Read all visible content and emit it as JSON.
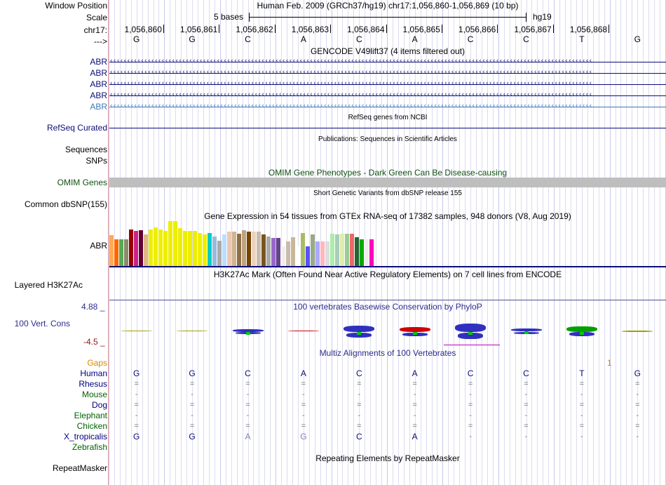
{
  "header": {
    "window_position_label": "Window Position",
    "scale_label": "Scale",
    "chrom_label": "chr17:",
    "arrow_label": "--->",
    "assembly_title": "Human Feb. 2009 (GRCh37/hg19)   chr17:1,056,860-1,056,869 (10 bp)",
    "scale_bases": "5 bases",
    "scale_db": "hg19",
    "positions": [
      "1,056,860",
      "1,056,861",
      "1,056,862",
      "1,056,863",
      "1,056,864",
      "1,056,865",
      "1,056,866",
      "1,056,867",
      "1,056,868"
    ],
    "sequence": [
      "G",
      "G",
      "C",
      "A",
      "C",
      "A",
      "C",
      "C",
      "T",
      "G"
    ]
  },
  "gencode": {
    "title": "GENCODE V49lift37 (4 items filtered out)",
    "items": [
      "ABR",
      "ABR",
      "ABR",
      "ABR",
      "ABR"
    ]
  },
  "refseq": {
    "title": "RefSeq genes from NCBI",
    "label": "RefSeq Curated"
  },
  "publications": {
    "title": "Publications: Sequences in Scientific Articles",
    "label1": "Sequences",
    "label2": "SNPs"
  },
  "omim": {
    "title": "OMIM Gene Phenotypes - Dark Green Can Be Disease-causing",
    "label": "OMIM Genes"
  },
  "dbsnp": {
    "title": "Short Genetic Variants from dbSNP release 155",
    "label": "Common dbSNP(155)"
  },
  "gtex": {
    "title": "Gene Expression in 54 tissues from GTEx RNA-seq of 17382 samples, 948 donors (V8, Aug 2019)",
    "label": "ABR",
    "tissues": [
      {
        "value": 0.68,
        "color": "#FFAA55"
      },
      {
        "value": 0.6,
        "color": "#FF6600"
      },
      {
        "value": 0.6,
        "color": "#55AA55"
      },
      {
        "value": 0.6,
        "color": "#8B8B6B"
      },
      {
        "value": 0.82,
        "color": "#990000"
      },
      {
        "value": 0.78,
        "color": "#CC2288"
      },
      {
        "value": 0.8,
        "color": "#660033"
      },
      {
        "value": 0.7,
        "color": "#DEB887"
      },
      {
        "value": 0.82,
        "color": "#EEEE00"
      },
      {
        "value": 0.86,
        "color": "#EEEE00"
      },
      {
        "value": 0.82,
        "color": "#EEEE00"
      },
      {
        "value": 0.78,
        "color": "#EEEE00"
      },
      {
        "value": 1.0,
        "color": "#EEEE00"
      },
      {
        "value": 1.0,
        "color": "#EEEE00"
      },
      {
        "value": 0.84,
        "color": "#EEEE00"
      },
      {
        "value": 0.78,
        "color": "#EEEE00"
      },
      {
        "value": 0.78,
        "color": "#EEEE00"
      },
      {
        "value": 0.78,
        "color": "#EEEE00"
      },
      {
        "value": 0.74,
        "color": "#EEEE00"
      },
      {
        "value": 0.7,
        "color": "#EEEE00"
      },
      {
        "value": 0.74,
        "color": "#00CCCC"
      },
      {
        "value": 0.66,
        "color": "#99BBDD"
      },
      {
        "value": 0.56,
        "color": "#AAAAAA"
      },
      {
        "value": 0.7,
        "color": "#BBDDFF"
      },
      {
        "value": 0.76,
        "color": "#E9C8B3"
      },
      {
        "value": 0.76,
        "color": "#D2B48C"
      },
      {
        "value": 0.72,
        "color": "#8B6F47"
      },
      {
        "value": 0.8,
        "color": "#BFA37F"
      },
      {
        "value": 0.76,
        "color": "#774400"
      },
      {
        "value": 0.76,
        "color": "#E9D3C0"
      },
      {
        "value": 0.76,
        "color": "#CCBBAA"
      },
      {
        "value": 0.7,
        "color": "#775522"
      },
      {
        "value": 0.66,
        "color": "#AAAAAA"
      },
      {
        "value": 0.62,
        "color": "#9966CC"
      },
      {
        "value": 0.62,
        "color": "#664488"
      },
      {
        "value": 0.44,
        "color": "#EEEEEE"
      },
      {
        "value": 0.54,
        "color": "#CCBBAA"
      },
      {
        "value": 0.64,
        "color": "#C8B89A"
      },
      {
        "value": 0.44,
        "color": "#FFFFFF"
      },
      {
        "value": 0.74,
        "color": "#AABB66"
      },
      {
        "value": 0.44,
        "color": "#5555FF"
      },
      {
        "value": 0.7,
        "color": "#99AA88"
      },
      {
        "value": 0.54,
        "color": "#AAAAFF"
      },
      {
        "value": 0.54,
        "color": "#FFB6C1"
      },
      {
        "value": 0.54,
        "color": "#DDDDDD"
      },
      {
        "value": 0.72,
        "color": "#AAEEAA"
      },
      {
        "value": 0.7,
        "color": "#AACCBB"
      },
      {
        "value": 0.72,
        "color": "#DDEEAA"
      },
      {
        "value": 0.72,
        "color": "#99CC99"
      },
      {
        "value": 0.72,
        "color": "#EE6666"
      },
      {
        "value": 0.64,
        "color": "#226633"
      },
      {
        "value": 0.6,
        "color": "#00AA00"
      },
      {
        "value": 0.6,
        "color": "#EEEEEE"
      },
      {
        "value": 0.6,
        "color": "#FF00BB"
      }
    ]
  },
  "h3k27ac": {
    "title": "H3K27Ac Mark (Often Found Near Active Regulatory Elements) on 7 cell lines from ENCODE",
    "label": "Layered H3K27Ac"
  },
  "conservation": {
    "title": "100 vertebrates Basewise Conservation by PhyloP",
    "label": "100 Vert. Cons",
    "max_label": "4.88 _",
    "min_label": "-4.5 _",
    "scores": [
      0.1,
      0.05,
      0.5,
      0.05,
      1.2,
      0.9,
      1.6,
      0.6,
      1.0,
      0.2
    ]
  },
  "multiz": {
    "title": "Multiz Alignments of 100 Vertebrates",
    "gaps_label": "Gaps",
    "gaps_value": "1",
    "species": [
      {
        "name": "Human",
        "color": "#000080",
        "bases": [
          "G",
          "G",
          "C",
          "A",
          "C",
          "A",
          "C",
          "C",
          "T",
          "G"
        ]
      },
      {
        "name": "Rhesus",
        "color": "#000080",
        "bases": [
          "=",
          "=",
          "=",
          "=",
          "=",
          "=",
          "=",
          "=",
          "=",
          "="
        ]
      },
      {
        "name": "Mouse",
        "color": "#006400",
        "bases": [
          "-",
          "-",
          "-",
          "-",
          "-",
          "-",
          "-",
          "-",
          "-",
          "-"
        ]
      },
      {
        "name": "Dog",
        "color": "#000080",
        "bases": [
          "=",
          "=",
          "=",
          "=",
          "=",
          "=",
          "=",
          "=",
          "=",
          "="
        ]
      },
      {
        "name": "Elephant",
        "color": "#006400",
        "bases": [
          "-",
          "-",
          "-",
          "-",
          "-",
          "-",
          "-",
          "-",
          "-",
          "-"
        ]
      },
      {
        "name": "Chicken",
        "color": "#006400",
        "bases": [
          "=",
          "=",
          "=",
          "=",
          "=",
          "=",
          "=",
          "=",
          "=",
          "="
        ]
      },
      {
        "name": "X_tropicalis",
        "color": "#000080",
        "bases": [
          "G",
          "G",
          "A",
          "G",
          "C",
          "A",
          "-",
          "-",
          "-",
          "-"
        ]
      },
      {
        "name": "Zebrafish",
        "color": "#006400",
        "bases": [
          "",
          "",
          "",
          "",
          "",
          "",
          "",
          "",
          "",
          ""
        ]
      }
    ]
  },
  "repeatmasker": {
    "title": "Repeating Elements by RepeatMasker",
    "label": "RepeatMasker"
  }
}
